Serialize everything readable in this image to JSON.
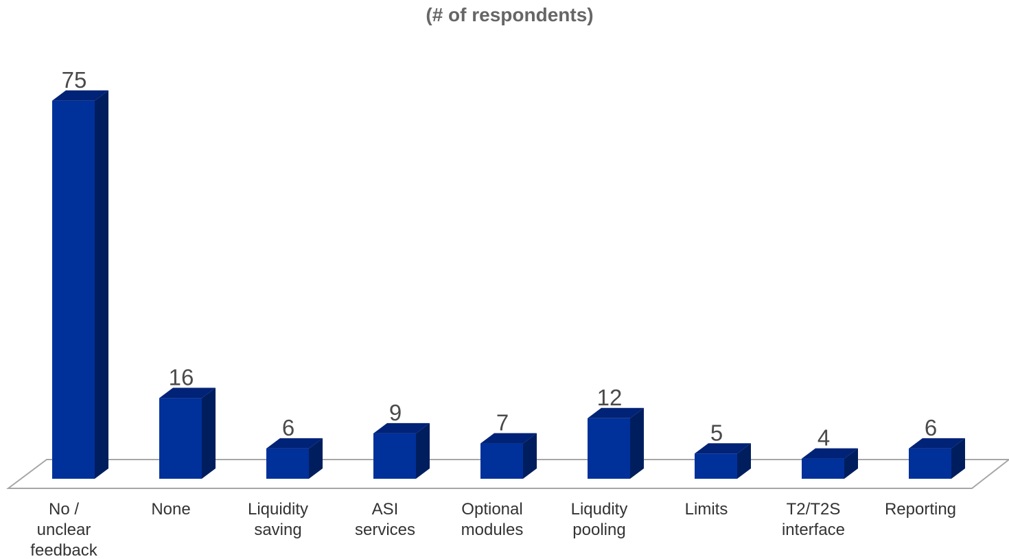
{
  "chart_data": {
    "type": "bar",
    "title": "(# of respondents)",
    "categories": [
      [
        "No /",
        "unclear",
        "feedback"
      ],
      [
        "None"
      ],
      [
        "Liquidity",
        "saving"
      ],
      [
        "ASI",
        "services"
      ],
      [
        "Optional",
        "modules"
      ],
      [
        "Liqudity",
        "pooling"
      ],
      [
        "Limits"
      ],
      [
        "T2/T2S",
        "interface"
      ],
      [
        "Reporting"
      ]
    ],
    "values": [
      75,
      16,
      6,
      9,
      7,
      12,
      5,
      4,
      6
    ],
    "bar_color": "#00309A",
    "bar_side_color": "#001E5E",
    "bar_top_color": "#002277",
    "floor_color": "#A6A6A6"
  }
}
